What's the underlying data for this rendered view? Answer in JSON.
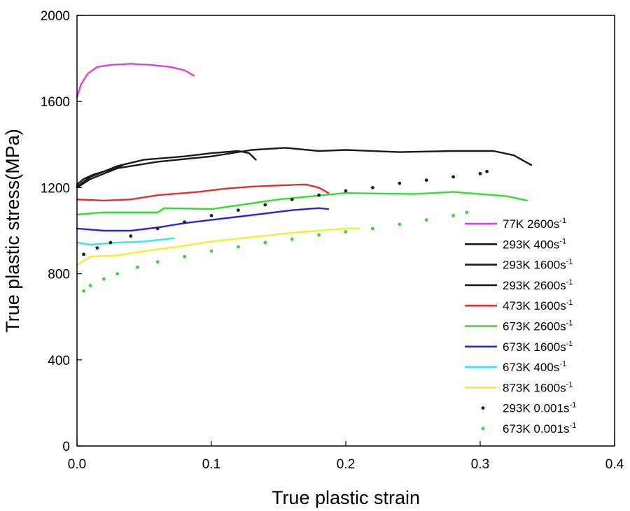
{
  "chart_data": {
    "type": "line",
    "title": "",
    "xlabel": "True plastic strain",
    "ylabel": "True plastic stress(MPa)",
    "xlim": [
      0,
      0.4
    ],
    "ylim": [
      0,
      2000
    ],
    "x_ticks": [
      "0.0",
      "0.1",
      "0.2",
      "0.3",
      "0.4"
    ],
    "y_ticks": [
      "0",
      "400",
      "800",
      "1200",
      "1600",
      "2000"
    ],
    "legend_position": "lower-right",
    "series": [
      {
        "name": "77K  2600s-1",
        "label_main": "77K  2600s",
        "label_exp": "-1",
        "color": "#e040e0",
        "style": "line",
        "x": [
          0.0,
          0.003,
          0.008,
          0.015,
          0.025,
          0.04,
          0.055,
          0.07,
          0.08,
          0.087
        ],
        "y": [
          1620,
          1680,
          1730,
          1760,
          1770,
          1775,
          1770,
          1760,
          1745,
          1720
        ]
      },
      {
        "name": "293K 400s-1",
        "label_main": "293K 400s",
        "label_exp": "-1",
        "color": "#1a1a1a",
        "style": "line",
        "x": [
          0.0,
          0.005,
          0.012,
          0.02,
          0.028,
          0.033
        ],
        "y": [
          1215,
          1240,
          1260,
          1275,
          1290,
          1300
        ]
      },
      {
        "name": "293K 1600s-1",
        "label_main": "293K 1600s",
        "label_exp": "-1",
        "color": "#1a1a1a",
        "style": "line",
        "x": [
          0.0,
          0.01,
          0.03,
          0.05,
          0.08,
          0.1,
          0.12,
          0.128,
          0.133
        ],
        "y": [
          1205,
          1250,
          1300,
          1330,
          1345,
          1360,
          1370,
          1360,
          1330
        ]
      },
      {
        "name": "293K 2600s-1",
        "label_main": "293K 2600s",
        "label_exp": "-1",
        "color": "#1a1a1a",
        "style": "line",
        "x": [
          0.0,
          0.01,
          0.03,
          0.06,
          0.1,
          0.13,
          0.155,
          0.18,
          0.2,
          0.24,
          0.28,
          0.31,
          0.325,
          0.338
        ],
        "y": [
          1200,
          1240,
          1290,
          1320,
          1345,
          1375,
          1385,
          1370,
          1375,
          1365,
          1370,
          1370,
          1350,
          1305
        ]
      },
      {
        "name": "473K 1600s-1",
        "label_main": "473K 1600s",
        "label_exp": "-1",
        "color": "#e03030",
        "style": "line",
        "x": [
          0.0,
          0.02,
          0.04,
          0.06,
          0.09,
          0.11,
          0.13,
          0.15,
          0.17,
          0.18,
          0.187
        ],
        "y": [
          1145,
          1140,
          1145,
          1165,
          1180,
          1195,
          1205,
          1210,
          1215,
          1200,
          1175
        ]
      },
      {
        "name": "673K 2600s-1",
        "label_main": "673K 2600s",
        "label_exp": "-1",
        "color": "#30e030",
        "style": "line",
        "x": [
          0.0,
          0.02,
          0.06,
          0.065,
          0.1,
          0.15,
          0.2,
          0.25,
          0.28,
          0.3,
          0.32,
          0.335
        ],
        "y": [
          1075,
          1085,
          1085,
          1105,
          1100,
          1145,
          1175,
          1170,
          1180,
          1170,
          1160,
          1140
        ]
      },
      {
        "name": "673K 1600s-1",
        "label_main": "673K 1600s",
        "label_exp": "-1",
        "color": "#2828d8",
        "style": "line",
        "x": [
          0.0,
          0.02,
          0.04,
          0.06,
          0.08,
          0.1,
          0.12,
          0.14,
          0.16,
          0.18,
          0.187
        ],
        "y": [
          1010,
          1000,
          1000,
          1015,
          1035,
          1050,
          1065,
          1080,
          1095,
          1105,
          1100
        ]
      },
      {
        "name": "673K 400s-1",
        "label_main": "673K 400s",
        "label_exp": "-1",
        "color": "#30e8f0",
        "style": "line",
        "x": [
          0.0,
          0.01,
          0.03,
          0.05,
          0.065,
          0.072
        ],
        "y": [
          945,
          935,
          945,
          950,
          960,
          965
        ]
      },
      {
        "name": "873K 1600s-1",
        "label_main": "873K 1600s",
        "label_exp": "-1",
        "color": "#f0f030",
        "style": "line",
        "x": [
          0.0,
          0.01,
          0.03,
          0.05,
          0.08,
          0.1,
          0.13,
          0.16,
          0.18,
          0.2,
          0.21
        ],
        "y": [
          840,
          880,
          885,
          905,
          930,
          950,
          970,
          990,
          1000,
          1010,
          1010
        ]
      },
      {
        "name": "293K 0.001s-1",
        "label_main": "293K 0.001s",
        "label_exp": "-1",
        "color": "#222222",
        "style": "dots",
        "x": [
          0.005,
          0.015,
          0.025,
          0.04,
          0.06,
          0.08,
          0.1,
          0.12,
          0.14,
          0.16,
          0.18,
          0.2,
          0.22,
          0.24,
          0.26,
          0.28,
          0.3,
          0.305
        ],
        "y": [
          890,
          920,
          945,
          975,
          1010,
          1040,
          1070,
          1095,
          1120,
          1145,
          1165,
          1185,
          1200,
          1220,
          1235,
          1250,
          1265,
          1275
        ]
      },
      {
        "name": "673K 0.001s-1",
        "label_main": "673K 0.001s",
        "label_exp": "-1",
        "color": "#40d040",
        "style": "dots",
        "x": [
          0.005,
          0.01,
          0.02,
          0.03,
          0.045,
          0.06,
          0.08,
          0.1,
          0.12,
          0.14,
          0.16,
          0.18,
          0.2,
          0.22,
          0.24,
          0.26,
          0.28,
          0.29
        ],
        "y": [
          720,
          745,
          775,
          800,
          830,
          855,
          880,
          905,
          925,
          945,
          960,
          980,
          995,
          1010,
          1030,
          1050,
          1070,
          1085
        ]
      }
    ]
  }
}
